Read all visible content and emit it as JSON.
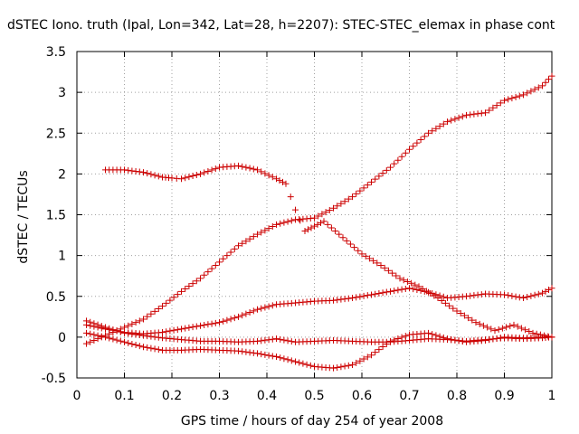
{
  "chart_data": {
    "type": "scatter",
    "title": "dSTEC Iono. truth (Ipal, Lon=342, Lat=28, h=2207): STEC-STEC_elemax in phase cont",
    "xlabel": "GPS time / hours of day 254 of year 2008",
    "ylabel": "dSTEC  / TECUs",
    "xlim": [
      0,
      1
    ],
    "ylim": [
      -0.5,
      3.5
    ],
    "xticks": [
      "0",
      "0.1",
      "0.2",
      "0.3",
      "0.4",
      "0.5",
      "0.6",
      "0.7",
      "0.8",
      "0.9",
      "1"
    ],
    "yticks": [
      "-0.5",
      "0",
      "0.5",
      "1",
      "1.5",
      "2",
      "2.5",
      "3",
      "3.5"
    ],
    "grid": true,
    "marker": "+",
    "color": "#cc0000",
    "series": [
      {
        "x": [
          0.02,
          0.06,
          0.1,
          0.14,
          0.18,
          0.22,
          0.26,
          0.3,
          0.34,
          0.38,
          0.42,
          0.46,
          0.5,
          0.54,
          0.58,
          0.62,
          0.66,
          0.7,
          0.74,
          0.78,
          0.82,
          0.86,
          0.9,
          0.94,
          0.98,
          1.0
        ],
        "y": [
          -0.08,
          0.02,
          0.12,
          0.22,
          0.38,
          0.56,
          0.72,
          0.92,
          1.12,
          1.26,
          1.38,
          1.44,
          1.46,
          1.58,
          1.72,
          1.9,
          2.08,
          2.3,
          2.5,
          2.64,
          2.72,
          2.75,
          2.9,
          2.97,
          3.08,
          3.2
        ]
      },
      {
        "x": [
          0.06,
          0.1,
          0.14,
          0.18,
          0.2,
          0.22,
          0.26,
          0.3,
          0.34,
          0.38,
          0.42,
          0.44,
          0.45,
          0.46,
          0.48,
          0.5,
          0.52,
          0.56,
          0.6,
          0.64,
          0.68,
          0.72,
          0.76,
          0.8,
          0.84,
          0.88,
          0.92,
          0.96,
          1.0
        ],
        "y": [
          2.05,
          2.05,
          2.02,
          1.96,
          1.95,
          1.94,
          2.0,
          2.08,
          2.1,
          2.05,
          1.94,
          1.88,
          1.72,
          1.56,
          1.3,
          1.36,
          1.42,
          1.22,
          1.02,
          0.88,
          0.72,
          0.62,
          0.48,
          0.32,
          0.18,
          0.08,
          0.15,
          0.05,
          0.0
        ]
      },
      {
        "x": [
          0.02,
          0.06,
          0.1,
          0.14,
          0.18,
          0.22,
          0.26,
          0.3,
          0.34,
          0.38,
          0.42,
          0.46,
          0.5,
          0.54,
          0.58,
          0.62,
          0.66,
          0.7,
          0.74,
          0.78,
          0.82,
          0.86,
          0.9,
          0.94,
          0.98,
          1.0
        ],
        "y": [
          0.15,
          0.1,
          0.06,
          0.04,
          0.06,
          0.1,
          0.14,
          0.18,
          0.25,
          0.34,
          0.4,
          0.42,
          0.44,
          0.45,
          0.48,
          0.52,
          0.56,
          0.6,
          0.55,
          0.48,
          0.5,
          0.53,
          0.52,
          0.48,
          0.54,
          0.6
        ]
      },
      {
        "x": [
          0.02,
          0.06,
          0.1,
          0.14,
          0.18,
          0.22,
          0.26,
          0.3,
          0.34,
          0.38,
          0.42,
          0.46,
          0.5,
          0.54,
          0.58,
          0.62,
          0.66,
          0.7,
          0.74,
          0.78,
          0.82,
          0.86,
          0.9,
          0.94,
          0.98,
          1.0
        ],
        "y": [
          0.2,
          0.12,
          0.05,
          0.02,
          -0.01,
          -0.03,
          -0.05,
          -0.05,
          -0.06,
          -0.05,
          -0.02,
          -0.06,
          -0.05,
          -0.04,
          -0.05,
          -0.06,
          -0.06,
          -0.04,
          -0.02,
          -0.03,
          -0.05,
          -0.03,
          -0.01,
          -0.02,
          -0.01,
          0.0
        ]
      },
      {
        "x": [
          0.02,
          0.06,
          0.1,
          0.14,
          0.18,
          0.22,
          0.26,
          0.3,
          0.34,
          0.38,
          0.42,
          0.46,
          0.5,
          0.54,
          0.58,
          0.62,
          0.66,
          0.7,
          0.74,
          0.78,
          0.82,
          0.86,
          0.9,
          0.94,
          0.98,
          1.0
        ],
        "y": [
          0.05,
          0.0,
          -0.06,
          -0.12,
          -0.16,
          -0.16,
          -0.15,
          -0.16,
          -0.17,
          -0.2,
          -0.24,
          -0.3,
          -0.36,
          -0.38,
          -0.34,
          -0.22,
          -0.05,
          0.03,
          0.05,
          -0.02,
          -0.06,
          -0.04,
          0.0,
          -0.01,
          0.0,
          0.0
        ]
      }
    ]
  }
}
